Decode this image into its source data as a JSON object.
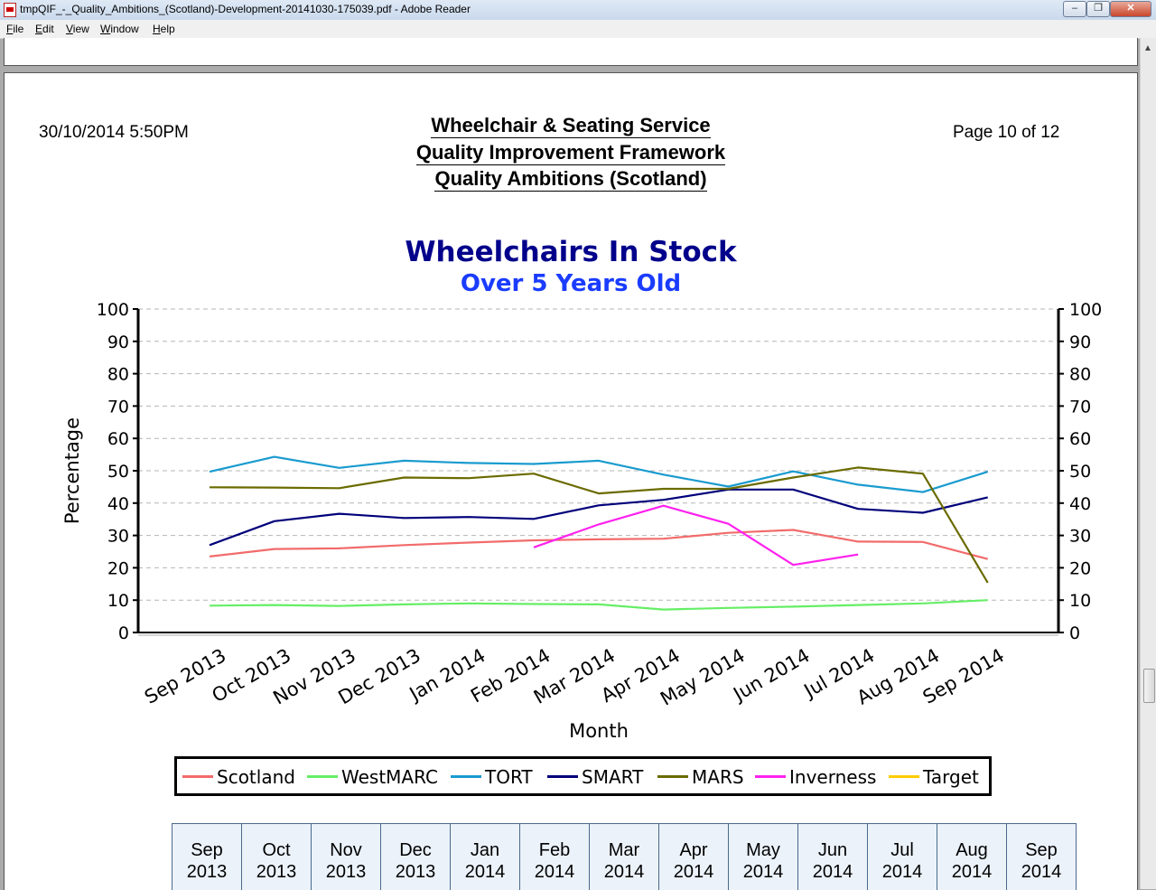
{
  "window": {
    "title": "tmpQIF_-_Quality_Ambitions_(Scotland)-Development-20141030-175039.pdf - Adobe Reader",
    "menu": [
      {
        "key": "F",
        "rest": "ile"
      },
      {
        "key": "E",
        "rest": "dit"
      },
      {
        "key": "V",
        "rest": "iew"
      },
      {
        "key": "W",
        "rest": "indow"
      },
      {
        "key": "H",
        "rest": "elp"
      }
    ]
  },
  "page": {
    "datetime": "30/10/2014 5:50PM",
    "page_number": "Page 10 of 12",
    "header_lines": [
      "Wheelchair & Seating Service",
      "Quality Improvement Framework",
      "Quality Ambitions (Scotland)"
    ]
  },
  "chart_data": {
    "type": "line",
    "title": "Wheelchairs In Stock",
    "subtitle": "Over 5 Years Old",
    "xlabel": "Month",
    "ylabel": "Percentage",
    "ylim": [
      0,
      100
    ],
    "yticks": [
      0,
      10,
      20,
      30,
      40,
      50,
      60,
      70,
      80,
      90,
      100
    ],
    "grid": true,
    "legend_position": "bottom",
    "categories": [
      "Sep 2013",
      "Oct 2013",
      "Nov 2013",
      "Dec 2013",
      "Jan 2014",
      "Feb 2014",
      "Mar 2014",
      "Apr 2014",
      "May 2014",
      "Jun 2014",
      "Jul 2014",
      "Aug 2014",
      "Sep 2014"
    ],
    "series": [
      {
        "name": "Scotland",
        "color": "#f26b6b",
        "values": [
          23.5,
          25.8,
          26,
          27,
          27.8,
          28.5,
          28.8,
          29,
          30.8,
          31.7,
          28.1,
          28,
          22.7
        ]
      },
      {
        "name": "WestMARC",
        "color": "#66ee66",
        "values": [
          8.3,
          8.5,
          8.2,
          8.7,
          9,
          8.8,
          8.7,
          7.1,
          7.6,
          8,
          8.5,
          9,
          10
        ]
      },
      {
        "name": "TORT",
        "color": "#1a9bcf",
        "values": [
          49.7,
          54.3,
          50.9,
          53.1,
          52.4,
          52.1,
          53.1,
          48.8,
          45.1,
          49.8,
          45.7,
          43.4,
          49.7
        ]
      },
      {
        "name": "SMART",
        "color": "#00007a",
        "values": [
          27,
          34.4,
          36.7,
          35.4,
          35.7,
          35.1,
          39.3,
          41,
          44.2,
          44.2,
          38.2,
          37,
          41.8
        ]
      },
      {
        "name": "MARS",
        "color": "#6b6b00",
        "values": [
          44.9,
          44.8,
          44.6,
          47.9,
          47.7,
          49.1,
          43,
          44.4,
          44.4,
          47.9,
          51,
          49.1,
          15.4
        ]
      },
      {
        "name": "Inverness",
        "color": "#ff22ee",
        "values": [
          null,
          null,
          null,
          null,
          null,
          26.3,
          33.4,
          39.2,
          33.6,
          20.9,
          24.1,
          null,
          null
        ]
      },
      {
        "name": "Target",
        "color": "#ffcc00",
        "values": [
          null,
          null,
          null,
          null,
          null,
          null,
          null,
          null,
          null,
          null,
          null,
          null,
          null
        ]
      }
    ]
  },
  "table": {
    "columns": [
      [
        "Sep",
        "2013"
      ],
      [
        "Oct",
        "2013"
      ],
      [
        "Nov",
        "2013"
      ],
      [
        "Dec",
        "2013"
      ],
      [
        "Jan",
        "2014"
      ],
      [
        "Feb",
        "2014"
      ],
      [
        "Mar",
        "2014"
      ],
      [
        "Apr",
        "2014"
      ],
      [
        "May",
        "2014"
      ],
      [
        "Jun",
        "2014"
      ],
      [
        "Jul",
        "2014"
      ],
      [
        "Aug",
        "2014"
      ],
      [
        "Sep",
        "2014"
      ]
    ]
  }
}
